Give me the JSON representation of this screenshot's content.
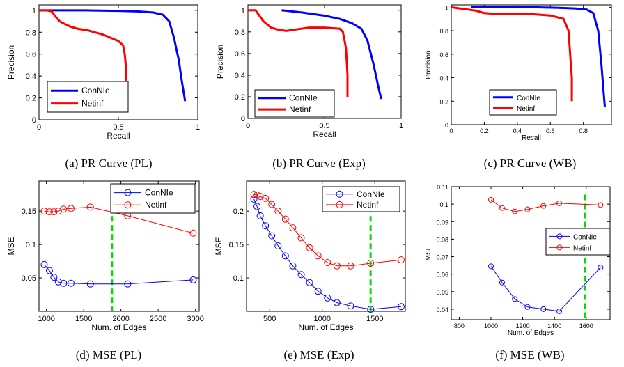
{
  "chart_data": [
    {
      "type": "line",
      "caption": "(a)  PR Curve (PL)",
      "xlabel": "Recall",
      "ylabel": "Precision",
      "xlim": [
        0,
        1
      ],
      "ylim": [
        0,
        1.05
      ],
      "xticks": [
        0,
        0.5,
        1
      ],
      "xticklabels": [
        "0",
        "0.5",
        "1"
      ],
      "yticks": [
        0,
        0.2,
        0.4,
        0.6,
        0.8,
        1
      ],
      "yticklabels": [
        "0",
        "0.2",
        "0.4",
        "0.6",
        "0.8",
        "1"
      ],
      "legend_placement": "bottom-left",
      "legend_style": "line",
      "series": [
        {
          "name": "ConNIe",
          "color": "#0000ff",
          "marker": "none",
          "x": [
            0,
            0.3,
            0.5,
            0.62,
            0.72,
            0.78,
            0.82,
            0.85,
            0.88,
            0.9,
            0.92
          ],
          "y": [
            1,
            1,
            0.995,
            0.99,
            0.98,
            0.96,
            0.9,
            0.75,
            0.55,
            0.35,
            0.17
          ]
        },
        {
          "name": "Netinf",
          "color": "#ff0000",
          "marker": "none",
          "x": [
            0,
            0.05,
            0.08,
            0.1,
            0.13,
            0.17,
            0.2,
            0.25,
            0.3,
            0.35,
            0.4,
            0.45,
            0.5,
            0.53,
            0.54,
            0.55,
            0.55
          ],
          "y": [
            1,
            1,
            0.99,
            0.95,
            0.9,
            0.87,
            0.85,
            0.83,
            0.82,
            0.8,
            0.78,
            0.75,
            0.72,
            0.68,
            0.6,
            0.45,
            0.32
          ]
        }
      ]
    },
    {
      "type": "line",
      "caption": "(b)  PR Curve (Exp)",
      "xlabel": "Recall",
      "ylabel": "Precision",
      "xlim": [
        0,
        1
      ],
      "ylim": [
        0,
        1.05
      ],
      "xticks": [
        0,
        0.5,
        1
      ],
      "xticklabels": [
        "0",
        "0.5",
        "1"
      ],
      "yticks": [
        0,
        0.2,
        0.4,
        0.6,
        0.8,
        1
      ],
      "yticklabels": [
        "0",
        "0.2",
        "0.4",
        "0.6",
        "0.8",
        "1"
      ],
      "legend_placement": "bottom-left",
      "legend_style": "line",
      "series": [
        {
          "name": "ConNIe",
          "color": "#0000ff",
          "marker": "none",
          "x": [
            0.22,
            0.35,
            0.5,
            0.6,
            0.68,
            0.74,
            0.78,
            0.82,
            0.85,
            0.87
          ],
          "y": [
            1,
            0.98,
            0.95,
            0.92,
            0.88,
            0.83,
            0.72,
            0.5,
            0.3,
            0.18
          ]
        },
        {
          "name": "Netinf",
          "color": "#ff0000",
          "marker": "none",
          "x": [
            0,
            0.05,
            0.1,
            0.15,
            0.2,
            0.25,
            0.3,
            0.4,
            0.5,
            0.6,
            0.62,
            0.64,
            0.65,
            0.65
          ],
          "y": [
            1,
            1,
            0.9,
            0.84,
            0.82,
            0.81,
            0.82,
            0.84,
            0.84,
            0.83,
            0.8,
            0.65,
            0.4,
            0.2
          ]
        }
      ]
    },
    {
      "type": "line",
      "caption": "(c)  PR Curve (WB)",
      "xlabel": "Recall",
      "ylabel": "Precision",
      "xlim": [
        0,
        0.97
      ],
      "ylim": [
        0,
        1.02
      ],
      "xticks": [
        0,
        0.2,
        0.4,
        0.6,
        0.8
      ],
      "xticklabels": [
        "0",
        "0.2",
        "0.4",
        "0.6",
        "0.8"
      ],
      "yticks": [
        0,
        0.2,
        0.4,
        0.6,
        0.8,
        1
      ],
      "yticklabels": [
        "0",
        "0.2",
        "0.4",
        "0.6",
        "0.8",
        "1"
      ],
      "legend_placement": "bottom-left",
      "legend_style": "line",
      "small": true,
      "series": [
        {
          "name": "ConNIe",
          "color": "#0000ff",
          "marker": "none",
          "x": [
            0.12,
            0.3,
            0.5,
            0.65,
            0.75,
            0.82,
            0.86,
            0.89,
            0.91,
            0.93
          ],
          "y": [
            1,
            1,
            1,
            0.995,
            0.99,
            0.98,
            0.95,
            0.8,
            0.5,
            0.15
          ]
        },
        {
          "name": "Netinf",
          "color": "#ff0000",
          "marker": "none",
          "x": [
            0,
            0.05,
            0.1,
            0.15,
            0.2,
            0.3,
            0.4,
            0.5,
            0.6,
            0.68,
            0.71,
            0.72,
            0.73,
            0.73
          ],
          "y": [
            1,
            0.99,
            0.98,
            0.97,
            0.95,
            0.94,
            0.94,
            0.94,
            0.93,
            0.9,
            0.8,
            0.6,
            0.4,
            0.2
          ]
        }
      ]
    },
    {
      "type": "line",
      "caption": "(d)  MSE (PL)",
      "xlabel": "Num. of Edges",
      "ylabel": "MSE",
      "xlim": [
        900,
        3050
      ],
      "ylim": [
        0,
        0.195
      ],
      "xticks": [
        1000,
        1500,
        2000,
        2500,
        3000
      ],
      "xticklabels": [
        "1000",
        "1500",
        "2000",
        "2500",
        "3000"
      ],
      "yticks": [
        0.05,
        0.1,
        0.15
      ],
      "yticklabels": [
        "0.05",
        "0.1",
        "0.15"
      ],
      "legend_placement": "top-right",
      "legend_style": "marker",
      "vline": 1880,
      "series": [
        {
          "name": "ConNIe",
          "color": "#0000ff",
          "marker": "circle",
          "x": [
            970,
            1040,
            1100,
            1160,
            1230,
            1330,
            1590,
            2090,
            2970
          ],
          "y": [
            0.07,
            0.061,
            0.051,
            0.044,
            0.042,
            0.042,
            0.041,
            0.041,
            0.047
          ]
        },
        {
          "name": "Netinf",
          "color": "#ff0000",
          "marker": "circle",
          "x": [
            970,
            1040,
            1100,
            1160,
            1230,
            1330,
            1590,
            2090,
            2970
          ],
          "y": [
            0.15,
            0.149,
            0.149,
            0.15,
            0.153,
            0.154,
            0.156,
            0.143,
            0.117
          ]
        }
      ]
    },
    {
      "type": "line",
      "caption": "(e)  MSE (Exp)",
      "xlabel": "Num. of Edges",
      "ylabel": "MSE",
      "xlim": [
        280,
        1790
      ],
      "ylim": [
        0.05,
        0.245
      ],
      "xticks": [
        500,
        1000,
        1500
      ],
      "xticklabels": [
        "500",
        "1000",
        "1500"
      ],
      "yticks": [
        0.1,
        0.15,
        0.2
      ],
      "yticklabels": [
        "0.1",
        "0.15",
        "0.2"
      ],
      "legend_placement": "top-right",
      "legend_style": "marker",
      "vline": 1460,
      "series": [
        {
          "name": "ConNIe",
          "color": "#0000ff",
          "marker": "circle",
          "x": [
            350,
            380,
            410,
            460,
            520,
            580,
            650,
            720,
            800,
            880,
            960,
            1050,
            1140,
            1270,
            1460,
            1750
          ],
          "y": [
            0.218,
            0.207,
            0.193,
            0.178,
            0.163,
            0.148,
            0.133,
            0.118,
            0.105,
            0.093,
            0.08,
            0.07,
            0.063,
            0.058,
            0.053,
            0.057
          ]
        },
        {
          "name": "Netinf",
          "color": "#ff0000",
          "marker": "circle",
          "x": [
            350,
            380,
            410,
            460,
            520,
            580,
            650,
            720,
            800,
            880,
            960,
            1050,
            1140,
            1270,
            1460,
            1750
          ],
          "y": [
            0.225,
            0.224,
            0.222,
            0.219,
            0.21,
            0.2,
            0.188,
            0.175,
            0.16,
            0.145,
            0.133,
            0.123,
            0.118,
            0.118,
            0.122,
            0.127
          ]
        }
      ]
    },
    {
      "type": "line",
      "caption": "(f)  MSE (WB)",
      "xlabel": "Num. of Edges",
      "ylabel": "MSE",
      "xlim": [
        750,
        1750
      ],
      "ylim": [
        0.034,
        0.11
      ],
      "xticks": [
        800,
        1000,
        1200,
        1400,
        1600
      ],
      "xticklabels": [
        "800",
        "1000",
        "1200",
        "1400",
        "1600"
      ],
      "yticks": [
        0.04,
        0.05,
        0.06,
        0.07,
        0.08,
        0.09,
        0.1,
        0.11
      ],
      "yticklabels": [
        "0.04",
        "0.05",
        "0.06",
        "0.07",
        "0.08",
        "0.09",
        "0.1",
        "0.11"
      ],
      "legend_placement": "middle-right",
      "legend_style": "marker",
      "small": true,
      "vline": 1590,
      "series": [
        {
          "name": "ConNIe",
          "color": "#0000ff",
          "marker": "circle",
          "x": [
            1000,
            1070,
            1150,
            1230,
            1330,
            1430,
            1690
          ],
          "y": [
            0.0645,
            0.0552,
            0.0458,
            0.0413,
            0.04,
            0.0388,
            0.0638
          ]
        },
        {
          "name": "Netinf",
          "color": "#ff0000",
          "marker": "circle",
          "x": [
            1000,
            1070,
            1150,
            1230,
            1330,
            1430,
            1690
          ],
          "y": [
            0.1025,
            0.0978,
            0.0958,
            0.097,
            0.099,
            0.1005,
            0.0995
          ]
        }
      ]
    }
  ]
}
